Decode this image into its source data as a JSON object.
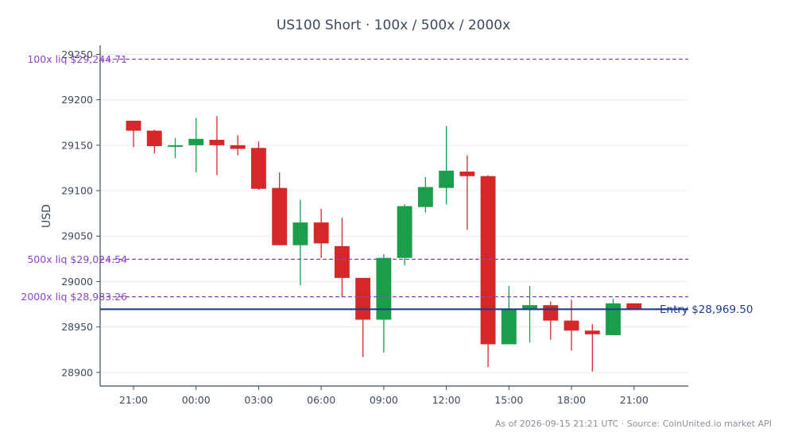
{
  "chart_data": {
    "type": "candlestick",
    "title": "US100 Short · 100x / 500x / 2000x",
    "ylabel": "USD",
    "xlabel": "",
    "ylim": [
      28885,
      29260
    ],
    "xlim": [
      -1.6,
      26.6
    ],
    "y_ticks": [
      28900,
      28950,
      29000,
      29050,
      29100,
      29150,
      29200,
      29250
    ],
    "y_tick_labels": [
      "28900",
      "28950",
      "29000",
      "29050",
      "29100",
      "29150",
      "29200",
      "29250"
    ],
    "x_ticks": [
      0,
      3,
      6,
      9,
      12,
      15,
      18,
      21,
      24
    ],
    "x_tick_labels": [
      "21:00",
      "00:00",
      "03:00",
      "06:00",
      "09:00",
      "12:00",
      "15:00",
      "18:00",
      "21:00"
    ],
    "grid": "horizontal",
    "colors": {
      "up": "#1a9e4a",
      "down": "#d62728",
      "entry": "#1f3d8f",
      "liq": "#8e44c9",
      "axis": "#3d4a5c",
      "grid": "#ececec"
    },
    "candles": [
      {
        "x": 0,
        "open": 29177,
        "high": 29177,
        "low": 29148,
        "close": 29166
      },
      {
        "x": 1,
        "open": 29166,
        "high": 29167,
        "low": 29141,
        "close": 29149
      },
      {
        "x": 2,
        "open": 29149,
        "high": 29158,
        "low": 29136,
        "close": 29150
      },
      {
        "x": 3,
        "open": 29150,
        "high": 29180,
        "low": 29120,
        "close": 29157
      },
      {
        "x": 4,
        "open": 29156,
        "high": 29182,
        "low": 29117,
        "close": 29150
      },
      {
        "x": 5,
        "open": 29150,
        "high": 29161,
        "low": 29139,
        "close": 29146
      },
      {
        "x": 6,
        "open": 29147,
        "high": 29154,
        "low": 29101,
        "close": 29102
      },
      {
        "x": 7,
        "open": 29103,
        "high": 29120,
        "low": 29040,
        "close": 29040
      },
      {
        "x": 8,
        "open": 29040,
        "high": 29090,
        "low": 28996,
        "close": 29065
      },
      {
        "x": 9,
        "open": 29065,
        "high": 29080,
        "low": 29026,
        "close": 29042
      },
      {
        "x": 10,
        "open": 29039,
        "high": 29070,
        "low": 28983,
        "close": 29004
      },
      {
        "x": 11,
        "open": 29004,
        "high": 29004,
        "low": 28917,
        "close": 28958
      },
      {
        "x": 12,
        "open": 28958,
        "high": 29030,
        "low": 28922,
        "close": 29026
      },
      {
        "x": 13,
        "open": 29026,
        "high": 29085,
        "low": 29018,
        "close": 29083
      },
      {
        "x": 14,
        "open": 29082,
        "high": 29115,
        "low": 29076,
        "close": 29104
      },
      {
        "x": 15,
        "open": 29103,
        "high": 29171,
        "low": 29085,
        "close": 29122
      },
      {
        "x": 16,
        "open": 29121,
        "high": 29139,
        "low": 29057,
        "close": 29116
      },
      {
        "x": 17,
        "open": 29116,
        "high": 29117,
        "low": 28906,
        "close": 28931
      },
      {
        "x": 18,
        "open": 28931,
        "high": 28995,
        "low": 28931,
        "close": 28969
      },
      {
        "x": 19,
        "open": 28970,
        "high": 28995,
        "low": 28933,
        "close": 28974
      },
      {
        "x": 20,
        "open": 28974,
        "high": 28978,
        "low": 28936,
        "close": 28957
      },
      {
        "x": 21,
        "open": 28957,
        "high": 28980,
        "low": 28924,
        "close": 28946
      },
      {
        "x": 22,
        "open": 28946,
        "high": 28953,
        "low": 28901,
        "close": 28942
      },
      {
        "x": 23,
        "open": 28941,
        "high": 28981,
        "low": 28941,
        "close": 28976
      },
      {
        "x": 24,
        "open": 28976,
        "high": 28976,
        "low": 28969,
        "close": 28970
      }
    ],
    "reference_lines": [
      {
        "name": "entry",
        "value": 28969.5,
        "label": "Entry $28,969.50",
        "style": "solid",
        "label_side": "right"
      },
      {
        "name": "liq-100x",
        "value": 29244.71,
        "label": "100x liq $29,244.71",
        "style": "dashed",
        "label_side": "left"
      },
      {
        "name": "liq-500x",
        "value": 29024.54,
        "label": "500x liq $29,024.54",
        "style": "dashed",
        "label_side": "left"
      },
      {
        "name": "liq-2000x",
        "value": 28983.26,
        "label": "2000x liq $28,983.26",
        "style": "dashed",
        "label_side": "left"
      }
    ],
    "footnote": "As of 2026-09-15 21:21 UTC · Source: CoinUnited.io market API"
  }
}
